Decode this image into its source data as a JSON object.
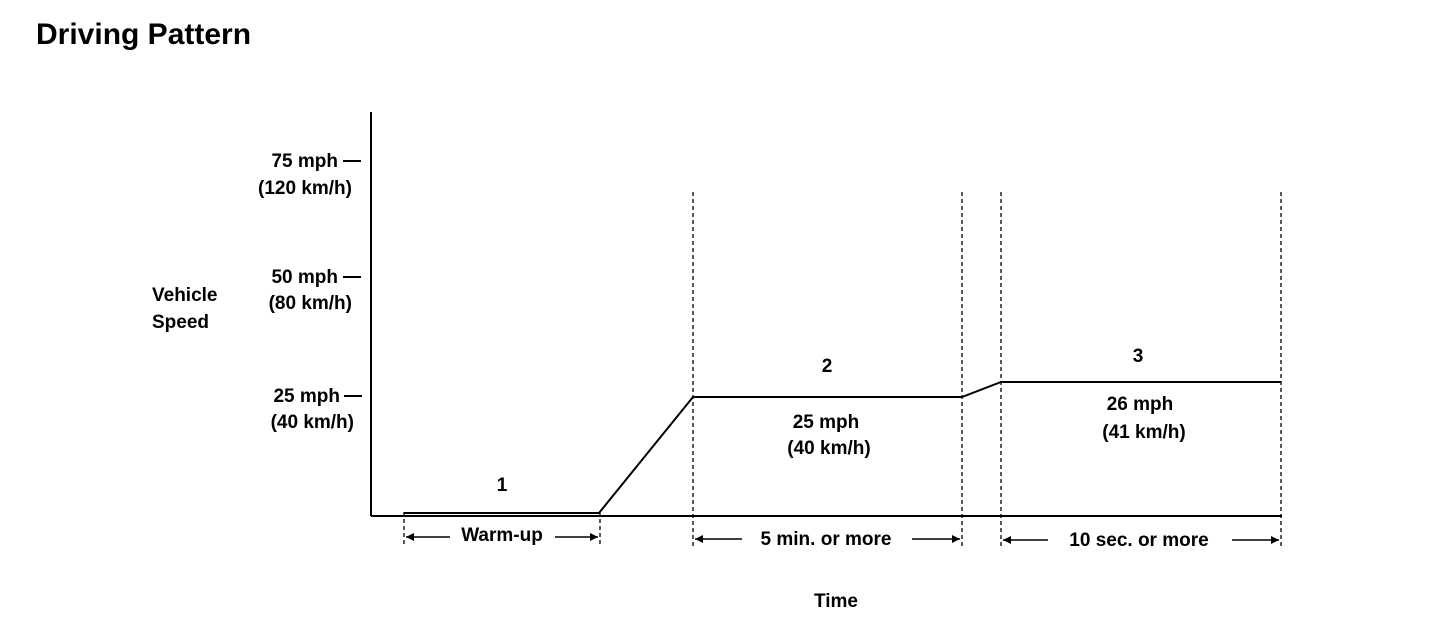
{
  "title": "Driving Pattern",
  "y_axis_label": [
    "Vehicle",
    "Speed"
  ],
  "x_axis_label": "Time",
  "speed_ticks": [
    {
      "mph": "75 mph",
      "kmh": "(120 km/h)"
    },
    {
      "mph": "50 mph",
      "kmh": "(80 km/h)"
    },
    {
      "mph": "25 mph",
      "kmh": "(40 km/h)"
    }
  ],
  "phases": [
    {
      "number": "1",
      "duration": "Warm-up",
      "speed_mph": "",
      "speed_kmh": ""
    },
    {
      "number": "2",
      "duration": "5 min. or more",
      "speed_mph": "25 mph",
      "speed_kmh": "(40 km/h)"
    },
    {
      "number": "3",
      "duration": "10 sec. or more",
      "speed_mph": "26 mph",
      "speed_kmh": "(41 km/h)"
    }
  ]
}
